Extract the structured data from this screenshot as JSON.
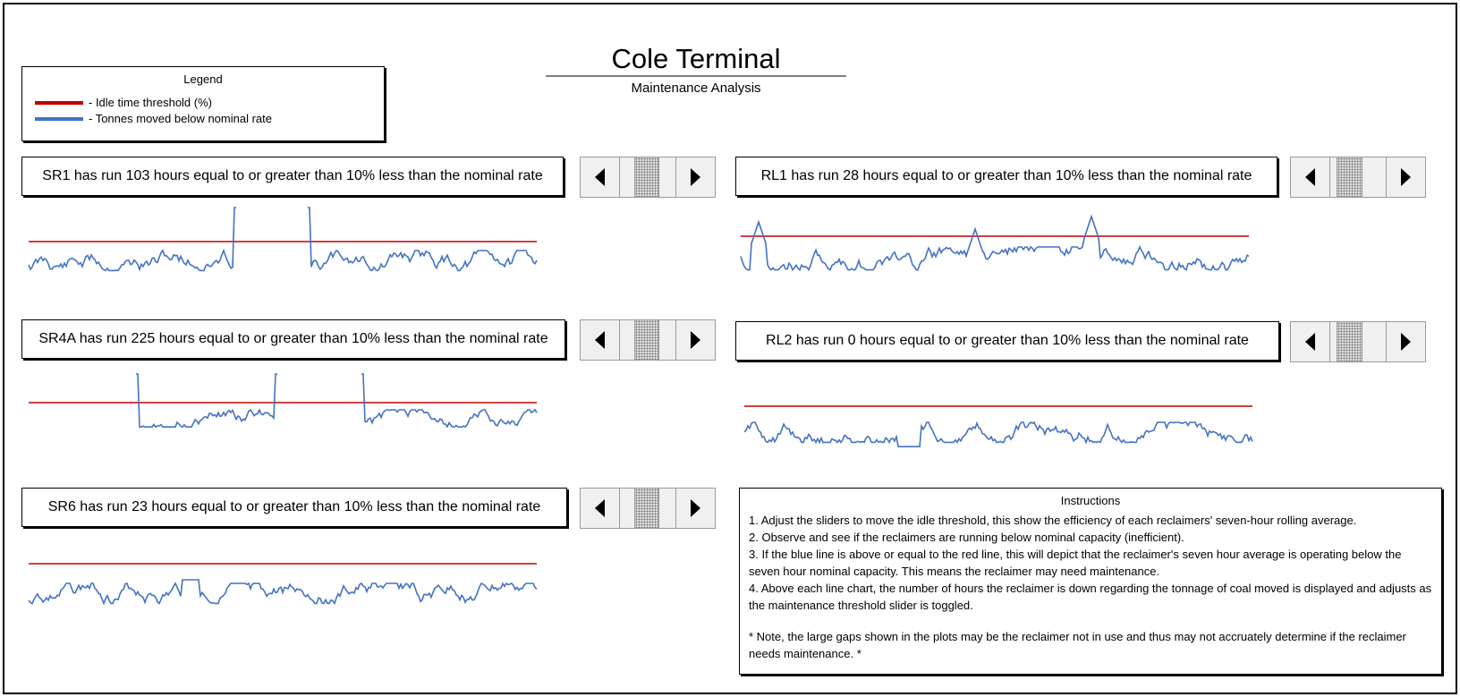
{
  "header": {
    "title": "Cole Terminal",
    "subtitle": "Maintenance Analysis"
  },
  "legend": {
    "title": "Legend",
    "items": [
      {
        "label": "- Idle time threshold (%)",
        "color": "#c00000"
      },
      {
        "label": "- Tonnes moved below nominal rate",
        "color": "#4472c4"
      }
    ]
  },
  "colors": {
    "threshold": "#c00000",
    "series": "#4472c4"
  },
  "panels": [
    {
      "id": "SR1",
      "text": "SR1 has run 103 hours equal to or greater than 10% less than the nominal rate",
      "slider_value": 0.25
    },
    {
      "id": "RL1",
      "text": "RL1 has run 28 hours equal to or greater than 10% less than the nominal rate",
      "slider_value": 0.12
    },
    {
      "id": "SR4A",
      "text": "SR4A has run 225 hours equal to or greater than 10% less than the nominal rate",
      "slider_value": 0.25
    },
    {
      "id": "RL2",
      "text": "RL2 has run 0 hours equal to or greater than 10% less than the nominal rate",
      "slider_value": 0.12
    },
    {
      "id": "SR6",
      "text": "SR6 has run 23 hours equal to or greater than 10% less than the nominal rate",
      "slider_value": 0.25
    }
  ],
  "instructions": {
    "title": "Instructions",
    "steps": [
      "1. Adjust the sliders to move the idle threshold, this show the efficiency of each reclaimers' seven-hour rolling average.",
      "2. Observe and see if the reclaimers are running below nominal capacity (inefficient).",
      "3. If the blue line is above or equal to the red line, this will depict that the reclaimer's seven hour average is operating below the seven hour nominal capacity. This means the reclaimer may need maintenance.",
      "4. Above each line chart, the number of hours the reclaimer is down regarding the tonnage of coal moved is displayed and adjusts as the maintenance threshold slider is toggled."
    ],
    "note": "* Note, the large gaps shown in the plots may be the reclaimer not in use and thus may not accruately determine if the reclaimer needs maintenance. *"
  }
}
